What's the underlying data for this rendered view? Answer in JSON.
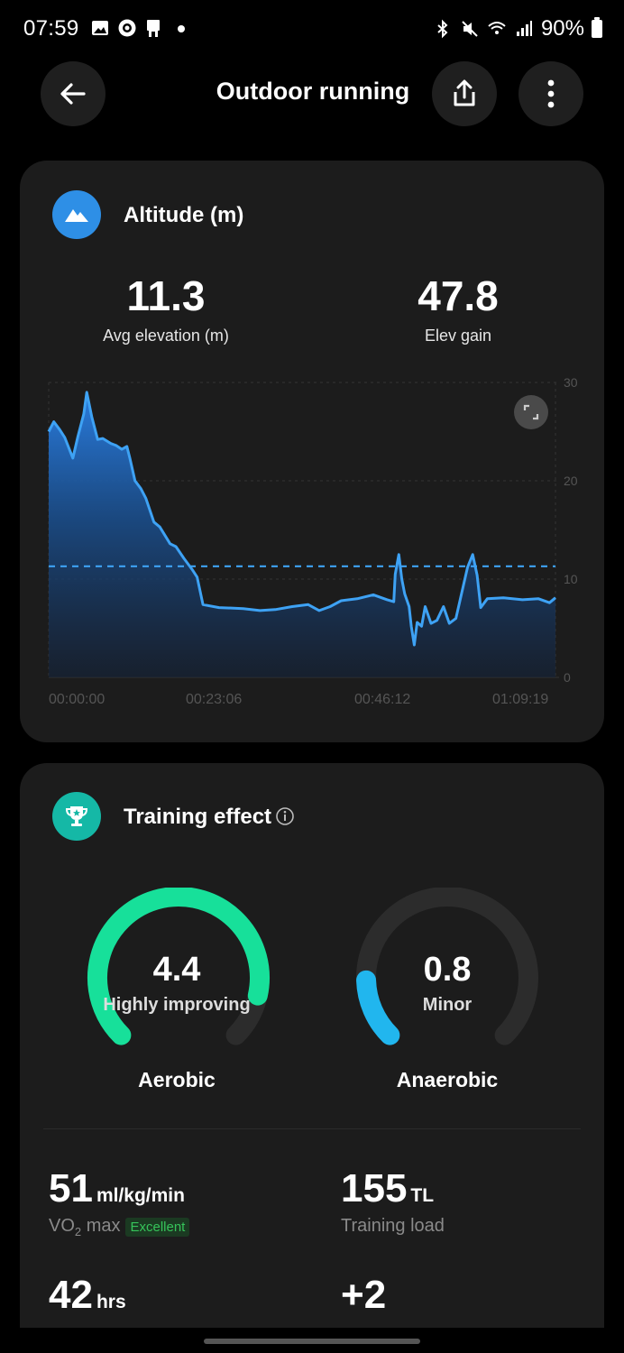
{
  "status_bar": {
    "time": "07:59",
    "battery": "90%",
    "left_icons": [
      "gallery-icon",
      "record-icon",
      "phone-icon",
      "dot-icon"
    ],
    "right_icons": [
      "bluetooth-icon",
      "mute-icon",
      "wifi-icon",
      "signal-icon",
      "battery-icon"
    ]
  },
  "header": {
    "title": "Outdoor running",
    "icons": [
      "back-arrow-icon",
      "share-icon",
      "more-vertical-icon"
    ]
  },
  "altitude": {
    "title": "Altitude (m)",
    "icon": "mountain-icon",
    "icon_color": "#2e8fe6",
    "avg_value": "11.3",
    "avg_label": "Avg elevation (m)",
    "gain_value": "47.8",
    "gain_label": "Elev gain",
    "y_ticks": [
      "30",
      "20",
      "10",
      "0"
    ],
    "x_ticks": [
      "00:00:00",
      "00:23:06",
      "00:46:12",
      "01:09:19"
    ]
  },
  "chart_data": {
    "type": "area",
    "xlabel": "",
    "ylabel": "",
    "ylim": [
      0,
      30
    ],
    "xlim": [
      0,
      69.32
    ],
    "x_unit": "minutes",
    "avg_line": 11.3,
    "line_color": "#3ea2f4",
    "points": [
      [
        0,
        25
      ],
      [
        0.7,
        26
      ],
      [
        1.5,
        25.2
      ],
      [
        2.2,
        24.4
      ],
      [
        3.3,
        22.3
      ],
      [
        4.0,
        24.5
      ],
      [
        4.8,
        26.8
      ],
      [
        5.2,
        29
      ],
      [
        5.9,
        26.5
      ],
      [
        6.7,
        24.2
      ],
      [
        7.4,
        24.3
      ],
      [
        8.5,
        23.8
      ],
      [
        9.2,
        23.6
      ],
      [
        10.0,
        23.2
      ],
      [
        10.7,
        23.5
      ],
      [
        11.1,
        22.3
      ],
      [
        11.8,
        20
      ],
      [
        12.6,
        19.2
      ],
      [
        13.3,
        18.2
      ],
      [
        14.4,
        15.8
      ],
      [
        15.2,
        15.3
      ],
      [
        16.6,
        13.6
      ],
      [
        17.4,
        13.3
      ],
      [
        18.5,
        12.1
      ],
      [
        19.6,
        11
      ],
      [
        20.3,
        10.2
      ],
      [
        21.1,
        7.4
      ],
      [
        23.3,
        7.1
      ],
      [
        26.6,
        7.0
      ],
      [
        28.9,
        6.8
      ],
      [
        31.0,
        6.9
      ],
      [
        33.3,
        7.2
      ],
      [
        35.5,
        7.4
      ],
      [
        37.0,
        6.8
      ],
      [
        38.5,
        7.2
      ],
      [
        40.0,
        7.8
      ],
      [
        42.2,
        8.0
      ],
      [
        44.4,
        8.4
      ],
      [
        46.3,
        7.9
      ],
      [
        47.2,
        7.7
      ],
      [
        47.4,
        10.5
      ],
      [
        47.9,
        12.5
      ],
      [
        48.3,
        10
      ],
      [
        48.7,
        8.5
      ],
      [
        49.3,
        7.2
      ],
      [
        49.6,
        5.2
      ],
      [
        50.0,
        3.3
      ],
      [
        50.4,
        5.6
      ],
      [
        51.0,
        5.2
      ],
      [
        51.5,
        7.2
      ],
      [
        52.3,
        5.5
      ],
      [
        53.1,
        5.8
      ],
      [
        54.0,
        7.2
      ],
      [
        54.8,
        5.5
      ],
      [
        55.7,
        6.0
      ],
      [
        56.4,
        8.3
      ],
      [
        57.3,
        11.2
      ],
      [
        58.0,
        12.5
      ],
      [
        58.6,
        10.4
      ],
      [
        59.1,
        7.1
      ],
      [
        60.0,
        8.0
      ],
      [
        62.2,
        8.1
      ],
      [
        64.8,
        7.9
      ],
      [
        67.0,
        8.0
      ],
      [
        68.5,
        7.6
      ],
      [
        69.32,
        8.1
      ]
    ]
  },
  "training": {
    "title": "Training effect",
    "icon": "trophy-icon",
    "info_icon": "info-icon",
    "icon_color": "#15b8a6",
    "aerobic": {
      "value": "4.4",
      "status": "Highly improving",
      "name": "Aerobic",
      "level": 4.4,
      "max": 5,
      "color": "#17e09a"
    },
    "anaerobic": {
      "value": "0.8",
      "status": "Minor",
      "name": "Anaerobic",
      "level": 0.8,
      "max": 5,
      "color": "#21b6ee"
    },
    "vo2": {
      "value": "51",
      "unit": "ml/kg/min",
      "label_main": "VO",
      "label_sub": "2",
      "label_tail": " max",
      "badge": "Excellent"
    },
    "load": {
      "value": "155",
      "unit": "TL",
      "label": "Training load"
    },
    "recovery": {
      "value": "42",
      "unit": "hrs"
    },
    "vitality": {
      "value": "+2"
    }
  }
}
